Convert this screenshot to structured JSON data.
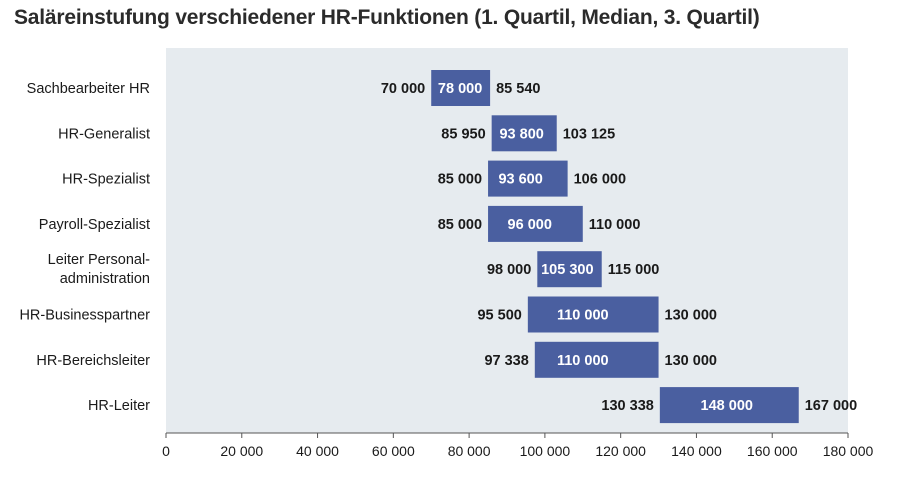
{
  "title": "Saläreinstufung verschiedener HR-Funktionen (1. Quartil, Median, 3. Quartil)",
  "chart_data": {
    "type": "bar",
    "title": "Saläreinstufung verschiedener HR-Funktionen (1. Quartil, Median, 3. Quartil)",
    "orientation": "horizontal-range",
    "categories": [
      [
        "Sachbearbeiter HR"
      ],
      [
        "HR-Generalist"
      ],
      [
        "HR-Spezialist"
      ],
      [
        "Payroll-Spezialist"
      ],
      [
        "Leiter Personal-",
        "administration"
      ],
      [
        "HR-Businesspartner"
      ],
      [
        "HR-Bereichsleiter"
      ],
      [
        "HR-Leiter"
      ]
    ],
    "q1": [
      70000,
      85950,
      85000,
      85000,
      98000,
      95500,
      97338,
      130338
    ],
    "median": [
      78000,
      93800,
      93600,
      96000,
      105300,
      110000,
      110000,
      148000
    ],
    "q3": [
      85540,
      103125,
      106000,
      110000,
      115000,
      130000,
      130000,
      167000
    ],
    "q1_labels": [
      "70 000",
      "85 950",
      "85 000",
      "85 000",
      "98 000",
      "95 500",
      "97 338",
      "130 338"
    ],
    "median_labels": [
      "78 000",
      "93 800",
      "93 600",
      "96 000",
      "105 300",
      "110 000",
      "110 000",
      "148 000"
    ],
    "q3_labels": [
      "85 540",
      "103 125",
      "106 000",
      "110 000",
      "115 000",
      "130 000",
      "130 000",
      "167 000"
    ],
    "xlim": [
      0,
      180000
    ],
    "xticks": [
      0,
      20000,
      40000,
      60000,
      80000,
      100000,
      120000,
      140000,
      160000,
      180000
    ],
    "xtick_labels": [
      "0",
      "20 000",
      "40 000",
      "60 000",
      "80 000",
      "100 000",
      "120 000",
      "140 000",
      "160 000",
      "180 000"
    ],
    "grid": false,
    "colors": {
      "bar": "#4a5fa0",
      "plot_bg": "#e6ebef",
      "bar_text": "#ffffff",
      "text": "#1a1a1a"
    }
  }
}
